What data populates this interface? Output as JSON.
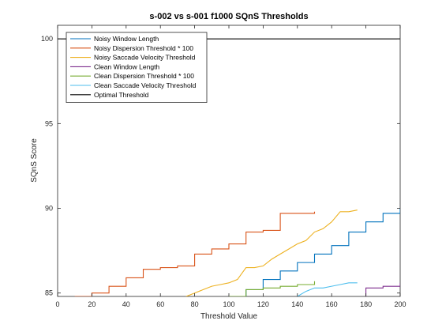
{
  "chart_data": {
    "type": "line",
    "title": "s-002 vs s-001 f1000 SQnS Thresholds",
    "xlabel": "Threshold Value",
    "ylabel": "SQnS Score",
    "xlim": [
      0,
      200
    ],
    "ylim": [
      84.8,
      100.8
    ],
    "xticks": [
      "0",
      "20",
      "40",
      "60",
      "80",
      "100",
      "120",
      "140",
      "160",
      "180",
      "200"
    ],
    "yticks": [
      "85",
      "90",
      "95",
      "100"
    ],
    "grid": false,
    "legend_position": "top-left",
    "series": [
      {
        "name": "Noisy Window Length",
        "color": "#0072BD",
        "step": true,
        "x": [
          100,
          110,
          120,
          130,
          140,
          150,
          160,
          170,
          180,
          190,
          200
        ],
        "y": [
          84.7,
          85.2,
          85.8,
          86.3,
          86.8,
          87.3,
          87.8,
          88.6,
          89.2,
          89.7,
          90.0
        ]
      },
      {
        "name": "Noisy Dispersion Threshold * 100",
        "color": "#D95319",
        "step": true,
        "x": [
          10,
          20,
          30,
          40,
          50,
          60,
          70,
          80,
          90,
          100,
          110,
          120,
          130,
          140,
          150
        ],
        "y": [
          84.8,
          85.0,
          85.4,
          85.9,
          86.4,
          86.5,
          86.6,
          87.3,
          87.6,
          87.9,
          88.6,
          88.7,
          89.7,
          89.7,
          89.8
        ]
      },
      {
        "name": "Noisy Saccade Velocity Threshold",
        "color": "#EDB120",
        "step": false,
        "x": [
          75,
          80,
          85,
          90,
          95,
          100,
          105,
          110,
          115,
          120,
          125,
          130,
          135,
          140,
          145,
          150,
          155,
          160,
          165,
          170,
          175
        ],
        "y": [
          84.8,
          85.0,
          85.2,
          85.4,
          85.5,
          85.6,
          85.8,
          86.5,
          86.5,
          86.6,
          87.0,
          87.3,
          87.6,
          87.9,
          88.1,
          88.6,
          88.8,
          89.2,
          89.8,
          89.8,
          89.9
        ]
      },
      {
        "name": "Clean Window Length",
        "color": "#7E2F8E",
        "step": true,
        "x": [
          170,
          180,
          190,
          200
        ],
        "y": [
          84.7,
          85.3,
          85.4,
          85.6
        ]
      },
      {
        "name": "Clean Dispersion Threshold * 100",
        "color": "#77AC30",
        "step": true,
        "x": [
          100,
          110,
          120,
          130,
          140,
          150
        ],
        "y": [
          84.8,
          85.2,
          85.3,
          85.4,
          85.5,
          85.7
        ]
      },
      {
        "name": "Clean Saccade Velocity Threshold",
        "color": "#4DBEEE",
        "step": false,
        "x": [
          140,
          145,
          150,
          155,
          160,
          165,
          170,
          175
        ],
        "y": [
          84.8,
          85.1,
          85.3,
          85.3,
          85.4,
          85.5,
          85.6,
          85.6
        ]
      },
      {
        "name": "Optimal Threshold",
        "color": "#000000",
        "step": false,
        "x": [
          0,
          200
        ],
        "y": [
          100,
          100
        ]
      }
    ]
  }
}
